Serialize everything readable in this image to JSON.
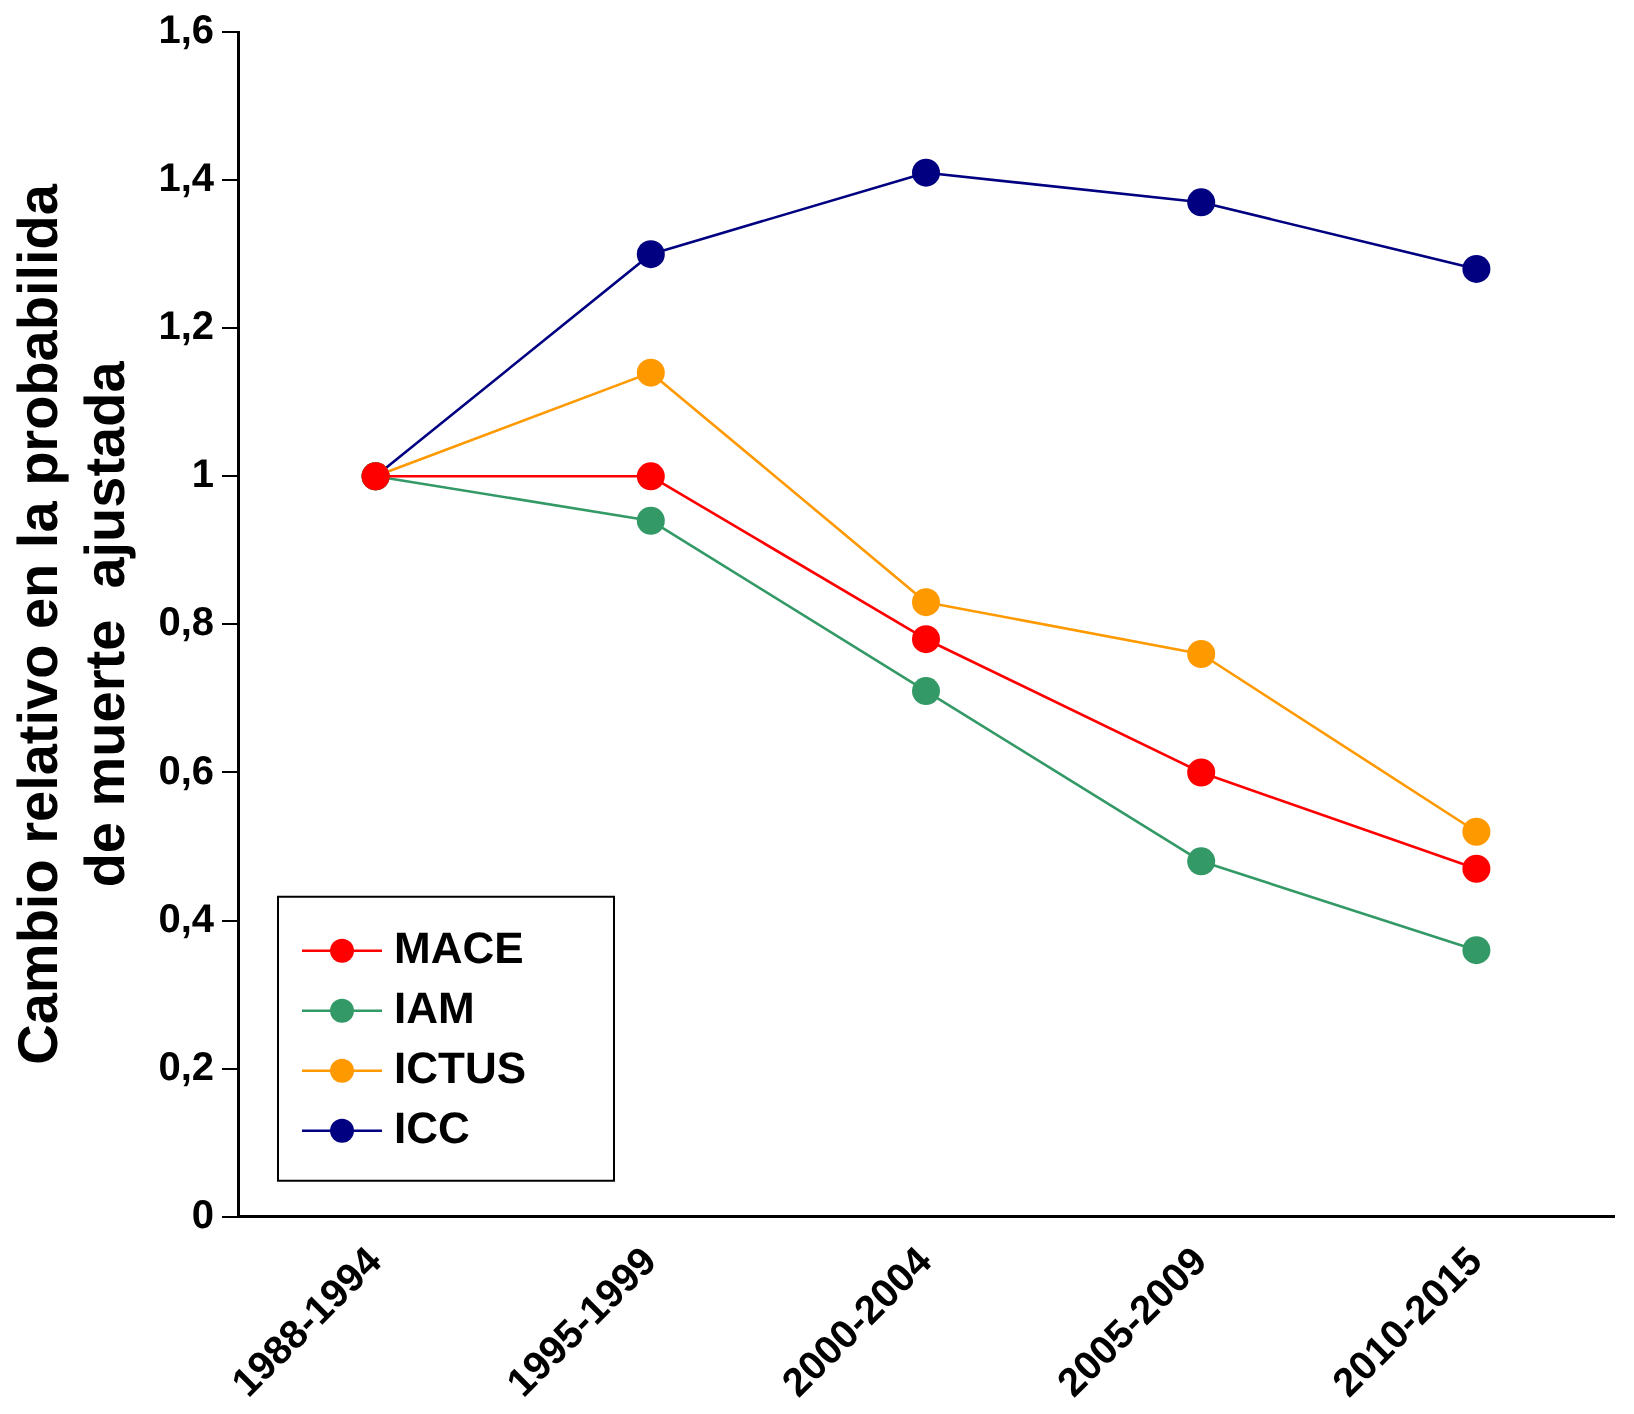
{
  "chart_data": {
    "type": "line",
    "ylabel": "Cambio relativo en la probabilida\nde muerte  ajustada",
    "categories": [
      "1988-1994",
      "1995-1999",
      "2000-2004",
      "2005-2009",
      "2010-2015"
    ],
    "series": [
      {
        "name": "MACE",
        "color": "#ff0000",
        "values": [
          1,
          1,
          0.78,
          0.6,
          0.47
        ]
      },
      {
        "name": "IAM",
        "color": "#339966",
        "values": [
          1,
          0.94,
          0.71,
          0.48,
          0.36
        ]
      },
      {
        "name": "ICTUS",
        "color": "#ff9900",
        "values": [
          1,
          1.14,
          0.83,
          0.76,
          0.52
        ]
      },
      {
        "name": "ICC",
        "color": "#000080",
        "values": [
          1,
          1.3,
          1.41,
          1.37,
          1.28
        ]
      }
    ],
    "ylim": [
      0,
      1.6
    ],
    "yticks": [
      {
        "value": 0,
        "label": "0"
      },
      {
        "value": 0.2,
        "label": "0,2"
      },
      {
        "value": 0.4,
        "label": "0,4"
      },
      {
        "value": 0.6,
        "label": "0,6"
      },
      {
        "value": 0.8,
        "label": "0,8"
      },
      {
        "value": 1,
        "label": "1"
      },
      {
        "value": 1.2,
        "label": "1,2"
      },
      {
        "value": 1.4,
        "label": "1,4"
      },
      {
        "value": 1.6,
        "label": "1,6"
      }
    ],
    "grid": false,
    "legend": "bottom left",
    "marker": "circle",
    "line_style": "solid"
  }
}
